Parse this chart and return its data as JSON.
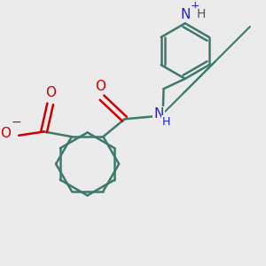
{
  "bg_color": "#ebebeb",
  "bond_color": "#3d7a6e",
  "bond_width": 1.8,
  "atom_colors": {
    "O": "#cc0000",
    "N": "#2020cc",
    "C": "#3d7a6e"
  },
  "font_size_atom": 11,
  "font_size_small": 9
}
